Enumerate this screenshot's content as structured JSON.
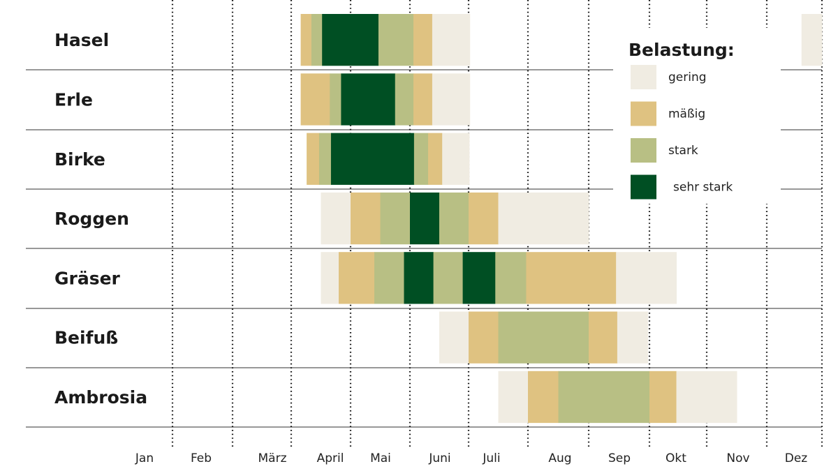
{
  "chart_data": {
    "type": "bar",
    "subtype": "timeline-gantt",
    "x_axis": {
      "unit": "month",
      "range": [
        0,
        12
      ],
      "tick_labels": [
        "Jan",
        "Feb",
        "März",
        "April",
        "Mai",
        "Juni",
        "Juli",
        "Aug",
        "Sep",
        "Okt",
        "Nov",
        "Dez"
      ],
      "grid": "dotted vertical at month boundaries"
    },
    "legend": {
      "title": "Belastung:",
      "placement": "top-right",
      "entries": [
        {
          "key": "gering",
          "label": "gering",
          "color": "#f0ece2"
        },
        {
          "key": "maessig",
          "label": "mäßig",
          "color": "#dfc281"
        },
        {
          "key": "stark",
          "label": "stark",
          "color": "#b8bf84"
        },
        {
          "key": "sehr_stark",
          "label": "sehr stark",
          "color": "#004f23"
        }
      ]
    },
    "rows": [
      {
        "label": "Hasel",
        "segments": [
          {
            "from": 3.16,
            "to": 3.34,
            "level": "maessig"
          },
          {
            "from": 3.34,
            "to": 3.52,
            "level": "stark"
          },
          {
            "from": 3.52,
            "to": 4.47,
            "level": "sehr_stark"
          },
          {
            "from": 4.47,
            "to": 5.06,
            "level": "stark"
          },
          {
            "from": 5.06,
            "to": 5.38,
            "level": "maessig"
          },
          {
            "from": 5.38,
            "to": 6.02,
            "level": "gering"
          },
          {
            "from": 11.63,
            "to": 12.0,
            "level": "gering"
          }
        ]
      },
      {
        "label": "Erle",
        "segments": [
          {
            "from": 3.16,
            "to": 3.65,
            "level": "maessig"
          },
          {
            "from": 3.65,
            "to": 3.84,
            "level": "stark"
          },
          {
            "from": 3.84,
            "to": 4.75,
            "level": "sehr_stark"
          },
          {
            "from": 4.75,
            "to": 5.06,
            "level": "stark"
          },
          {
            "from": 5.06,
            "to": 5.38,
            "level": "maessig"
          },
          {
            "from": 5.38,
            "to": 6.02,
            "level": "gering"
          }
        ]
      },
      {
        "label": "Birke",
        "segments": [
          {
            "from": 3.26,
            "to": 3.47,
            "level": "maessig"
          },
          {
            "from": 3.47,
            "to": 3.67,
            "level": "stark"
          },
          {
            "from": 3.67,
            "to": 5.07,
            "level": "sehr_stark"
          },
          {
            "from": 5.07,
            "to": 5.31,
            "level": "stark"
          },
          {
            "from": 5.31,
            "to": 5.55,
            "level": "maessig"
          },
          {
            "from": 5.55,
            "to": 6.01,
            "level": "gering"
          }
        ]
      },
      {
        "label": "Roggen",
        "segments": [
          {
            "from": 3.5,
            "to": 4.0,
            "level": "gering"
          },
          {
            "from": 4.0,
            "to": 4.5,
            "level": "maessig"
          },
          {
            "from": 4.5,
            "to": 5.0,
            "level": "stark"
          },
          {
            "from": 5.0,
            "to": 5.5,
            "level": "sehr_stark"
          },
          {
            "from": 5.5,
            "to": 6.0,
            "level": "stark"
          },
          {
            "from": 6.0,
            "to": 6.5,
            "level": "maessig"
          },
          {
            "from": 6.5,
            "to": 8.0,
            "level": "gering"
          }
        ]
      },
      {
        "label": "Gräser",
        "segments": [
          {
            "from": 3.5,
            "to": 3.8,
            "level": "gering"
          },
          {
            "from": 3.8,
            "to": 4.4,
            "level": "maessig"
          },
          {
            "from": 4.4,
            "to": 4.9,
            "level": "stark"
          },
          {
            "from": 4.9,
            "to": 5.4,
            "level": "sehr_stark"
          },
          {
            "from": 5.4,
            "to": 5.9,
            "level": "stark"
          },
          {
            "from": 5.9,
            "to": 6.45,
            "level": "sehr_stark"
          },
          {
            "from": 6.45,
            "to": 6.97,
            "level": "stark"
          },
          {
            "from": 6.97,
            "to": 8.45,
            "level": "maessig"
          },
          {
            "from": 8.45,
            "to": 9.47,
            "level": "gering"
          }
        ]
      },
      {
        "label": "Beifuß",
        "segments": [
          {
            "from": 5.5,
            "to": 6.0,
            "level": "gering"
          },
          {
            "from": 6.0,
            "to": 6.5,
            "level": "maessig"
          },
          {
            "from": 6.5,
            "to": 8.0,
            "level": "stark"
          },
          {
            "from": 8.0,
            "to": 8.47,
            "level": "maessig"
          },
          {
            "from": 8.47,
            "to": 8.97,
            "level": "gering"
          }
        ]
      },
      {
        "label": "Ambrosia",
        "segments": [
          {
            "from": 6.5,
            "to": 7.0,
            "level": "gering"
          },
          {
            "from": 7.0,
            "to": 7.5,
            "level": "maessig"
          },
          {
            "from": 7.5,
            "to": 9.0,
            "level": "stark"
          },
          {
            "from": 9.0,
            "to": 9.47,
            "level": "maessig"
          },
          {
            "from": 9.47,
            "to": 10.5,
            "level": "gering"
          }
        ]
      }
    ]
  }
}
